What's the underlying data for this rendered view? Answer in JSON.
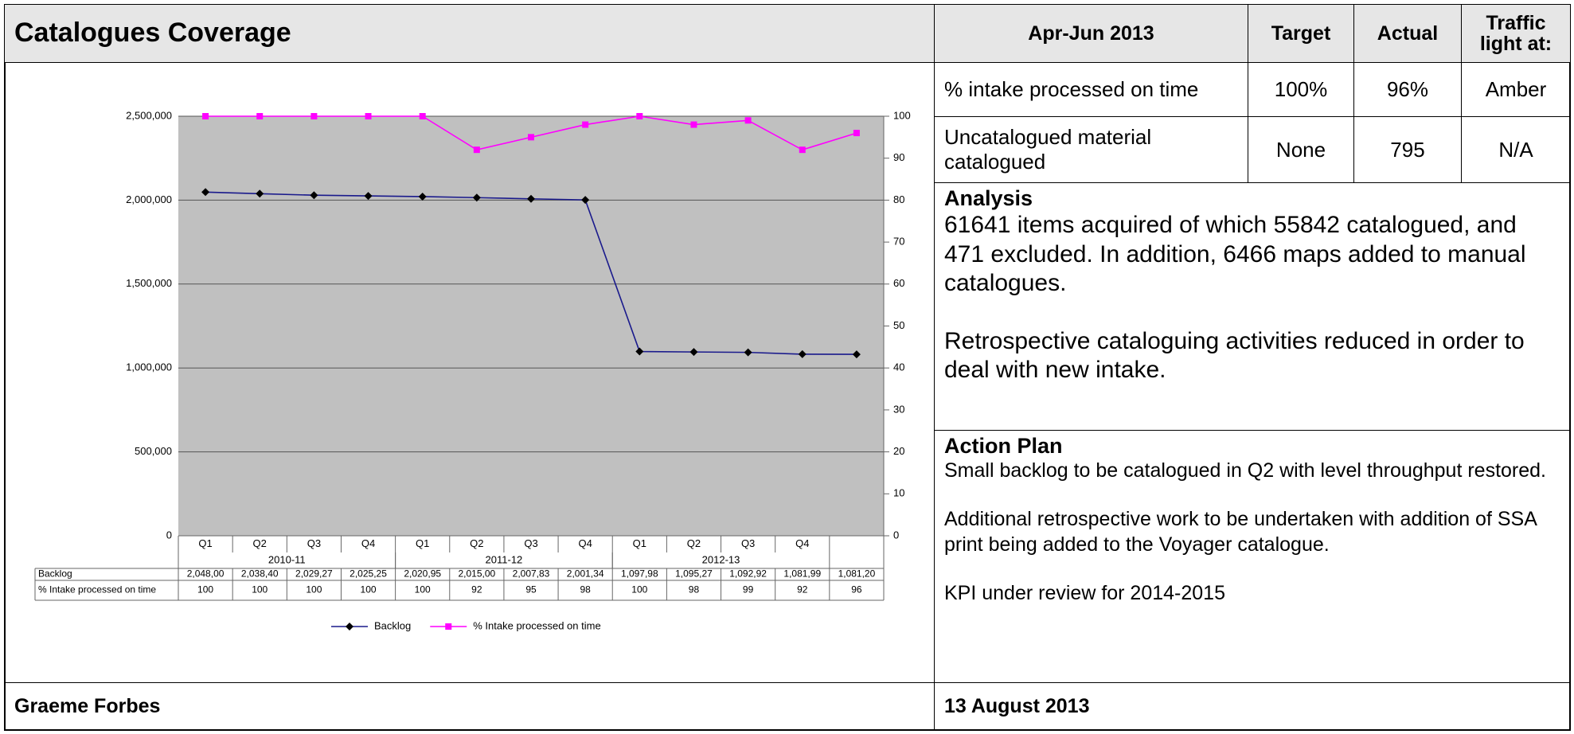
{
  "header": {
    "title": "Catalogues Coverage"
  },
  "kpi_table": {
    "columns": [
      "Apr-Jun 2013",
      "Target",
      "Actual",
      "Traffic light at:"
    ],
    "rows": [
      [
        "% intake processed on time",
        "100%",
        "96%",
        "Amber"
      ],
      [
        "Uncatalogued material catalogued",
        "None",
        "795",
        "N/A"
      ]
    ]
  },
  "analysis": {
    "heading": "Analysis",
    "paragraphs": [
      "61641 items acquired of which 55842 catalogued, and 471 excluded. In addition, 6466 maps added to manual catalogues.",
      "Retrospective cataloguing activities reduced in order to deal with new intake."
    ]
  },
  "action_plan": {
    "heading": "Action Plan",
    "paragraphs": [
      "Small backlog to be catalogued in Q2 with level throughput restored.",
      "Additional retrospective work to be undertaken with addition of SSA print being added to the Voyager catalogue.",
      "KPI under review for 2014-2015"
    ]
  },
  "footer": {
    "author": "Graeme Forbes",
    "date": "13 August 2013"
  },
  "chart_data": {
    "type": "line",
    "categories": [
      "Q1",
      "Q2",
      "Q3",
      "Q4",
      "Q1",
      "Q2",
      "Q3",
      "Q4",
      "Q1",
      "Q2",
      "Q3",
      "Q4",
      null
    ],
    "category_groups": [
      {
        "label": "2010-11",
        "size": 4
      },
      {
        "label": "2011-12",
        "size": 4
      },
      {
        "label": "2012-13",
        "size": 4
      }
    ],
    "series": [
      {
        "name": "Backlog",
        "color": "#1a1a8c",
        "marker_color": "#000000",
        "marker": "diamond",
        "values": [
          2048000,
          2038400,
          2029270,
          2025250,
          2020950,
          2015000,
          2007830,
          2001340,
          1097980,
          1095270,
          1092920,
          1081990,
          1081200
        ],
        "value_labels": [
          "2,048,00",
          "2,038,40",
          "2,029,27",
          "2,025,25",
          "2,020,95",
          "2,015,00",
          "2,007,83",
          "2,001,34",
          "1,097,98",
          "1,095,27",
          "1,092,92",
          "1,081,99",
          "1,081,20"
        ]
      },
      {
        "name": "% Intake processed on time",
        "color": "#ff00ff",
        "marker_color": "#ff00ff",
        "marker": "square",
        "axis": "y2",
        "values": [
          100,
          100,
          100,
          100,
          100,
          92,
          95,
          98,
          100,
          98,
          99,
          92,
          96
        ]
      }
    ],
    "ylim": [
      0,
      2500000
    ],
    "yticks": [
      0,
      {
        "value": 500000,
        "label": "500,000"
      },
      {
        "value": 1000000,
        "label": "1,000,000"
      },
      {
        "value": 1500000,
        "label": "1,500,000"
      },
      {
        "value": 2000000,
        "label": "2,000,000"
      },
      {
        "value": 2500000,
        "label": "2,500,000"
      }
    ],
    "y2lim": [
      0,
      100
    ],
    "y2ticks": [
      0,
      10,
      20,
      30,
      40,
      50,
      60,
      70,
      80,
      90,
      100
    ],
    "grid": true,
    "plot_background": "#c0c0c0",
    "legend": "bottom"
  }
}
